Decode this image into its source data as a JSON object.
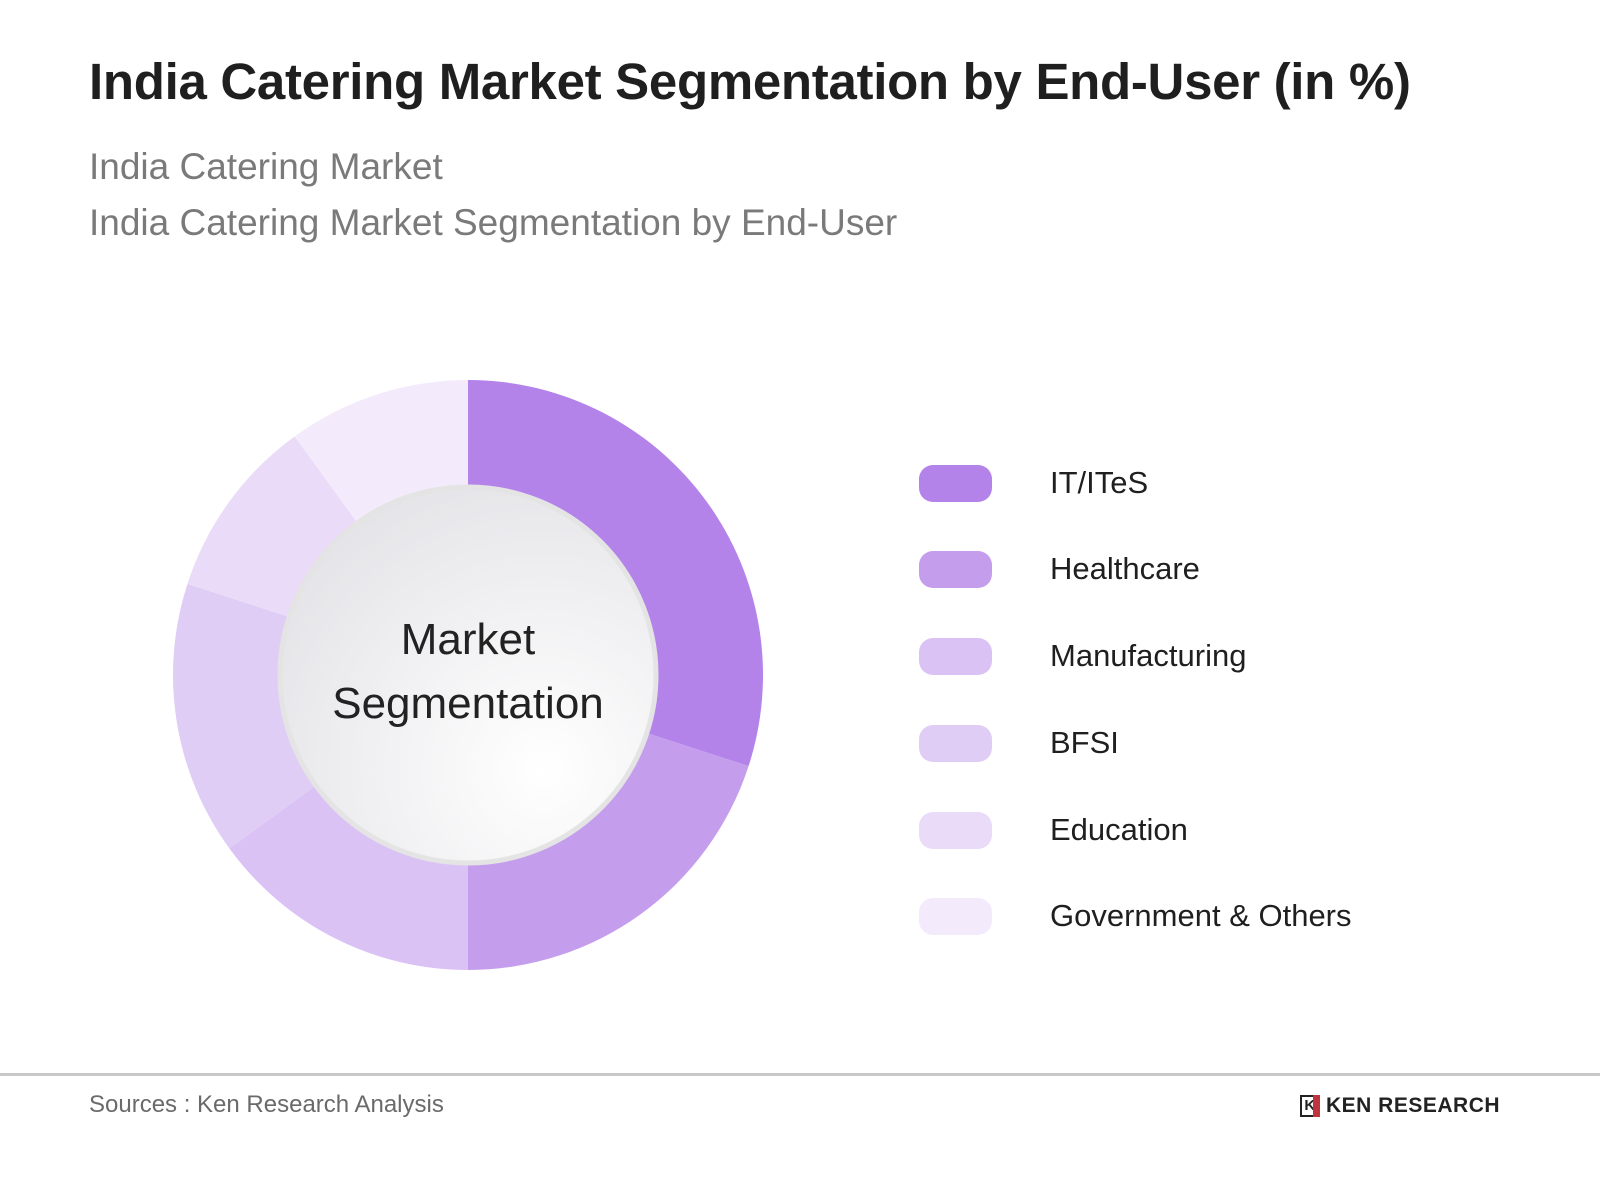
{
  "title": "India Catering Market Segmentation by End-User (in %)",
  "subtitle1": "India Catering Market",
  "subtitle2": "India Catering Market Segmentation by End-User",
  "chart_data": {
    "type": "pie",
    "variant": "donut",
    "center_label": [
      "Market",
      "Segmentation"
    ],
    "legend_position": "right",
    "categories": [
      "IT/ITeS",
      "Healthcare",
      "Manufacturing",
      "BFSI",
      "Education",
      "Government & Others"
    ],
    "values": [
      30,
      20,
      15,
      15,
      10,
      10
    ],
    "colors": [
      "#b383ea",
      "#c59ded",
      "#dbc2f5",
      "#e0cdf6",
      "#eadbf8",
      "#f3ebfb"
    ]
  },
  "footer": {
    "sources": "Sources : Ken Research Analysis",
    "logo": "KEN RESEARCH"
  }
}
